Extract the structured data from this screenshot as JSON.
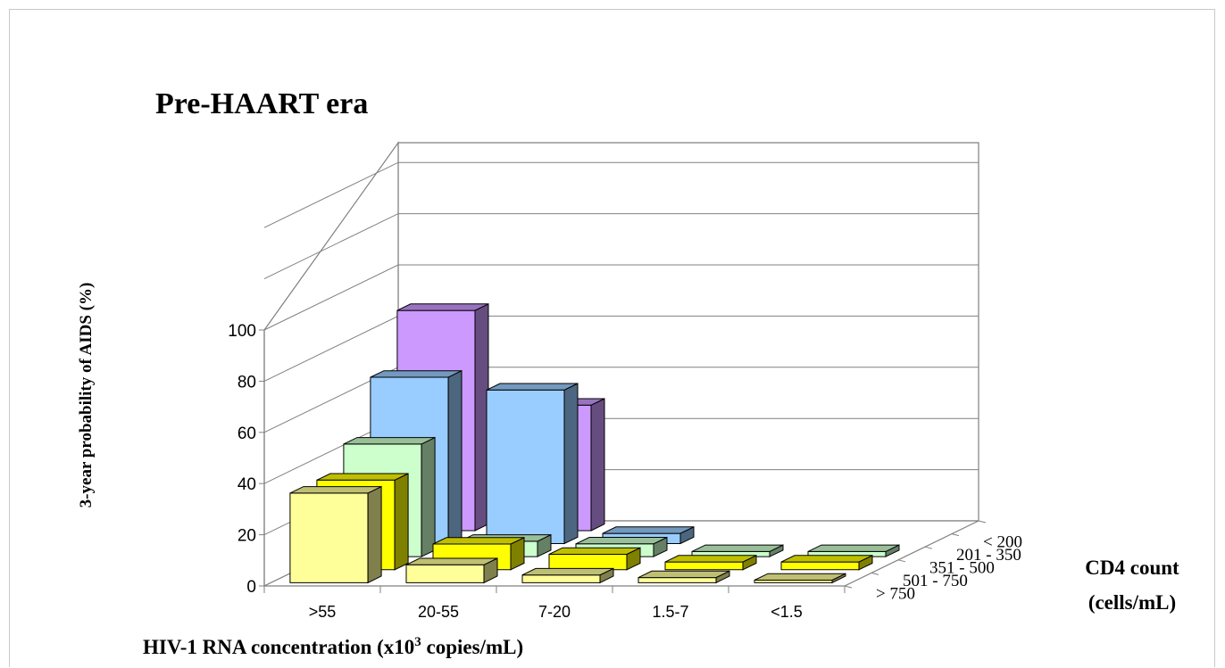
{
  "chart_data": {
    "type": "bar3d",
    "title": "Pre-HAART era",
    "ylabel": "3-year probability of AIDS (%)",
    "xlabel": "HIV-1 RNA concentration (x10",
    "xlabel_sup": "3",
    "xlabel_tail": " copies/mL)",
    "zlabel_line1": "CD4 count",
    "zlabel_line2": "(cells/mL)",
    "ylim": [
      0,
      100
    ],
    "yticks": [
      "0",
      "20",
      "40",
      "60",
      "80",
      "100"
    ],
    "categories": [
      ">55",
      "20-55",
      "7-20",
      "1.5-7",
      "<1.5"
    ],
    "series": [
      {
        "name": "> 750",
        "values": [
          35,
          7,
          3,
          2,
          1
        ]
      },
      {
        "name": "501 - 750",
        "values": [
          35,
          10,
          6,
          3,
          3
        ]
      },
      {
        "name": "351 - 500",
        "values": [
          44,
          6,
          5,
          2,
          2
        ]
      },
      {
        "name": "201 - 350",
        "values": [
          65,
          60,
          4,
          0,
          0
        ]
      },
      {
        "name": "< 200",
        "values": [
          86,
          49,
          0,
          0,
          0
        ]
      }
    ],
    "colors": {
      "> 750": "#ffff99",
      "501 - 750": "#ffff00",
      "351 - 500": "#ccffcc",
      "201 - 350": "#99ccff",
      "< 200": "#cc99ff"
    },
    "grid": true
  }
}
